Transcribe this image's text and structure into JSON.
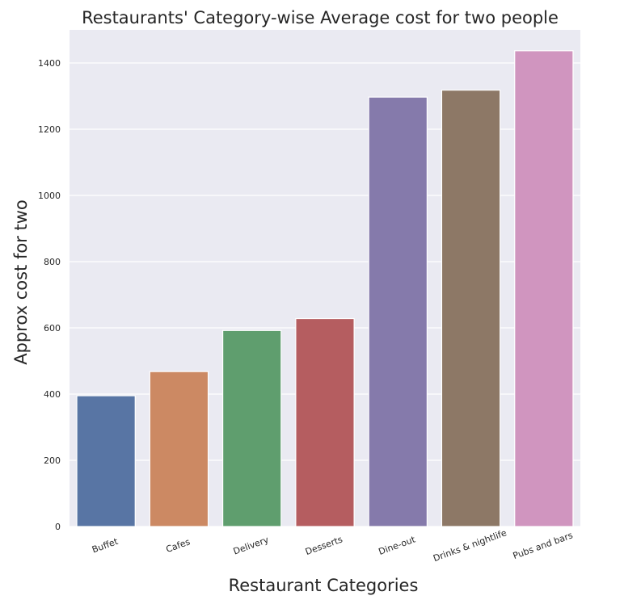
{
  "chart_data": {
    "type": "bar",
    "title": "Restaurants' Category-wise Average cost for two people",
    "xlabel": "Restaurant Categories",
    "ylabel": "Approx cost for two",
    "categories": [
      "Buffet",
      "Cafes",
      "Delivery",
      "Desserts",
      "Dine-out",
      "Drinks & nightlife",
      "Pubs and bars"
    ],
    "values": [
      395,
      468,
      592,
      628,
      1297,
      1318,
      1437
    ],
    "colors": [
      "#5875a4",
      "#cc8963",
      "#5f9e6e",
      "#b55d60",
      "#857aab",
      "#8d7866",
      "#d095bf"
    ],
    "ylim": [
      0,
      1500
    ],
    "yticks": [
      0,
      200,
      400,
      600,
      800,
      1000,
      1200,
      1400
    ],
    "grid": true,
    "background": "#eaeaf2",
    "xtick_rotation": -20
  }
}
